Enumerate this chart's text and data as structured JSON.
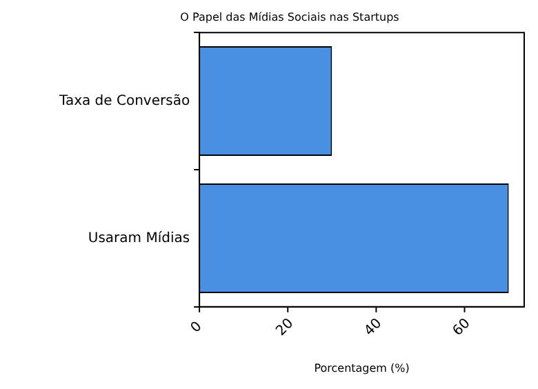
{
  "chart_data": {
    "type": "bar",
    "orientation": "horizontal",
    "title": "O Papel das Mídias Sociais nas Startups",
    "xlabel": "Porcentagem (%)",
    "categories": [
      "Taxa de Conversão",
      "Usaram Mídias"
    ],
    "values": [
      30,
      70
    ],
    "color": "#4a90e2",
    "xlim": [
      0,
      73.5
    ],
    "xticks": [
      0,
      20,
      40,
      60
    ],
    "grid": false,
    "legend": false
  }
}
